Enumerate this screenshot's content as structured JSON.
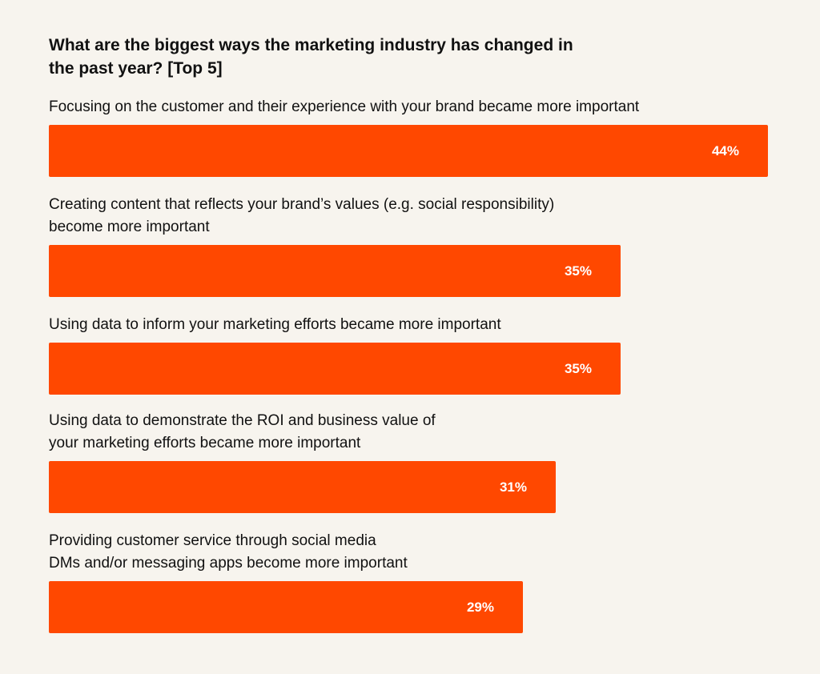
{
  "chart_data": {
    "type": "bar",
    "orientation": "horizontal",
    "title": "What are the biggest ways the marketing industry has changed in\nthe past year? [Top 5]",
    "bar_color": "#ff4800",
    "background_color": "#f7f4ee",
    "categories": [
      "Focusing on the customer and their experience with your brand became more important",
      "Creating content that reflects your brand’s values (e.g. social responsibility)\nbecome more important",
      "Using data to inform your marketing efforts became more important",
      "Using data to demonstrate the ROI and business value of\nyour marketing efforts became more important",
      "Providing customer service through social media\nDMs and/or messaging apps become more important"
    ],
    "values": [
      44,
      35,
      35,
      31,
      29
    ],
    "value_labels": [
      "44%",
      "35%",
      "35%",
      "31%",
      "29%"
    ],
    "unit": "%",
    "xlim": [
      0,
      44
    ]
  }
}
